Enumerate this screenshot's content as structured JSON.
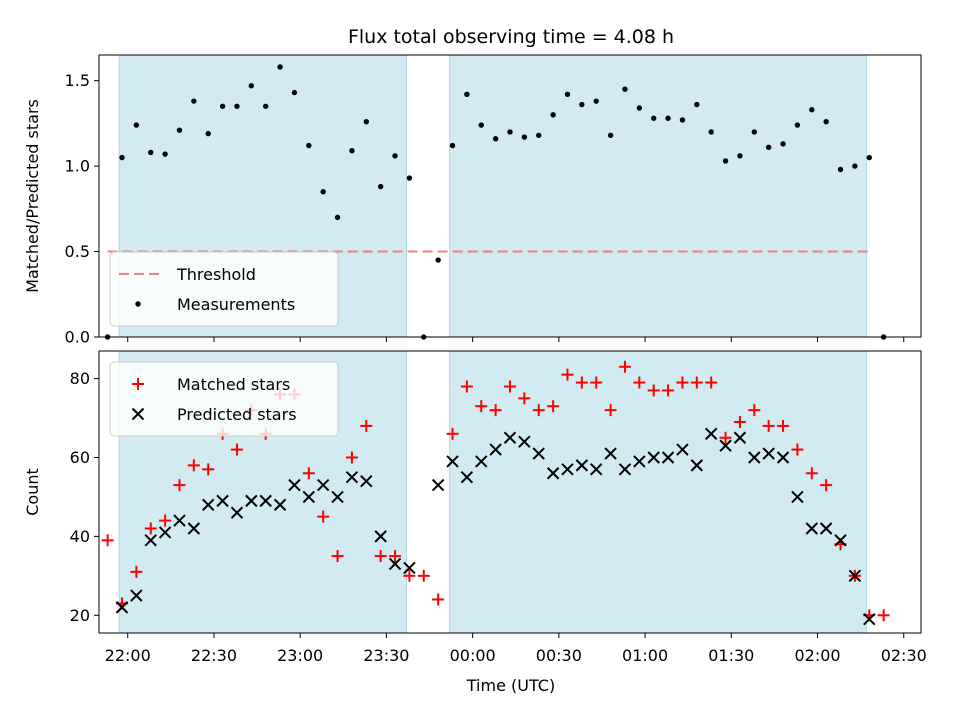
{
  "chart_data": {
    "title": "Flux total observing time = 4.08 h",
    "xlabel": "Time (UTC)",
    "x_start": "21:50",
    "x_end": "02:36",
    "x_ticks": [
      "22:00",
      "22:30",
      "23:00",
      "23:30",
      "00:00",
      "00:30",
      "01:00",
      "01:30",
      "02:00",
      "02:30"
    ],
    "observing_windows": [
      {
        "start": "21:57",
        "end": "23:37"
      },
      {
        "start": "23:52",
        "end": "02:17"
      }
    ],
    "window_color": "#add8e6",
    "panels": [
      {
        "type": "scatter",
        "ylabel": "Matched/Predicted stars",
        "ylim": [
          0,
          1.65
        ],
        "yticks": [
          "0.0",
          "0.5",
          "1.0",
          "1.5"
        ],
        "legend_position": "lower-left",
        "threshold": {
          "name": "Threshold",
          "value": 0.5,
          "x_start": "21:53",
          "x_end": "02:19",
          "color": "#f08080",
          "style": "dashed"
        },
        "series": [
          {
            "name": "Measurements",
            "marker": "dot",
            "color": "#000000",
            "x": [
              "21:53",
              "21:58",
              "22:03",
              "22:08",
              "22:13",
              "22:18",
              "22:23",
              "22:28",
              "22:33",
              "22:38",
              "22:43",
              "22:48",
              "22:53",
              "22:58",
              "23:03",
              "23:08",
              "23:13",
              "23:18",
              "23:23",
              "23:28",
              "23:33",
              "23:38",
              "23:43",
              "23:48",
              "23:53",
              "23:58",
              "00:03",
              "00:08",
              "00:13",
              "00:18",
              "00:23",
              "00:28",
              "00:33",
              "00:38",
              "00:43",
              "00:48",
              "00:53",
              "00:58",
              "01:03",
              "01:08",
              "01:13",
              "01:18",
              "01:23",
              "01:28",
              "01:33",
              "01:38",
              "01:43",
              "01:48",
              "01:53",
              "01:58",
              "02:03",
              "02:08",
              "02:13",
              "02:18",
              "02:23"
            ],
            "y": [
              0.0,
              1.05,
              1.24,
              1.08,
              1.07,
              1.21,
              1.38,
              1.19,
              1.35,
              1.35,
              1.47,
              1.35,
              1.58,
              1.43,
              1.12,
              0.85,
              0.7,
              1.09,
              1.26,
              0.88,
              1.06,
              0.93,
              0.0,
              0.45,
              1.12,
              1.42,
              1.24,
              1.16,
              1.2,
              1.17,
              1.18,
              1.3,
              1.42,
              1.36,
              1.38,
              1.18,
              1.45,
              1.34,
              1.28,
              1.28,
              1.27,
              1.36,
              1.2,
              1.03,
              1.06,
              1.2,
              1.11,
              1.13,
              1.24,
              1.33,
              1.26,
              0.98,
              1.0,
              1.05,
              0.0
            ]
          }
        ]
      },
      {
        "type": "scatter",
        "ylabel": "Count",
        "ylim": [
          15.5,
          87
        ],
        "yticks": [
          "20",
          "40",
          "60",
          "80"
        ],
        "legend_position": "upper-left",
        "series": [
          {
            "name": "Matched stars",
            "marker": "plus",
            "color": "#ff0000",
            "x": [
              "21:53",
              "21:58",
              "22:03",
              "22:08",
              "22:13",
              "22:18",
              "22:23",
              "22:28",
              "22:33",
              "22:38",
              "22:43",
              "22:48",
              "22:53",
              "22:58",
              "23:03",
              "23:08",
              "23:13",
              "23:18",
              "23:23",
              "23:28",
              "23:33",
              "23:38",
              "23:43",
              "23:48",
              "23:53",
              "23:58",
              "00:03",
              "00:08",
              "00:13",
              "00:18",
              "00:23",
              "00:28",
              "00:33",
              "00:38",
              "00:43",
              "00:48",
              "00:53",
              "00:58",
              "01:03",
              "01:08",
              "01:13",
              "01:18",
              "01:23",
              "01:28",
              "01:33",
              "01:38",
              "01:43",
              "01:48",
              "01:53",
              "01:58",
              "02:03",
              "02:08",
              "02:13",
              "02:18",
              "02:23"
            ],
            "y": [
              39,
              23,
              31,
              42,
              44,
              53,
              58,
              57,
              66,
              62,
              72,
              66,
              76,
              76,
              56,
              45,
              35,
              60,
              68,
              35,
              35,
              30,
              30,
              24,
              66,
              78,
              73,
              72,
              78,
              75,
              72,
              73,
              81,
              79,
              79,
              72,
              83,
              79,
              77,
              77,
              79,
              79,
              79,
              65,
              69,
              72,
              68,
              68,
              62,
              56,
              53,
              38,
              30,
              20,
              20
            ]
          },
          {
            "name": "Predicted stars",
            "marker": "x",
            "color": "#000000",
            "x": [
              "21:58",
              "22:03",
              "22:08",
              "22:13",
              "22:18",
              "22:23",
              "22:28",
              "22:33",
              "22:38",
              "22:43",
              "22:48",
              "22:53",
              "22:58",
              "23:03",
              "23:08",
              "23:13",
              "23:18",
              "23:23",
              "23:28",
              "23:33",
              "23:38",
              "23:48",
              "23:53",
              "23:58",
              "00:03",
              "00:08",
              "00:13",
              "00:18",
              "00:23",
              "00:28",
              "00:33",
              "00:38",
              "00:43",
              "00:48",
              "00:53",
              "00:58",
              "01:03",
              "01:08",
              "01:13",
              "01:18",
              "01:23",
              "01:28",
              "01:33",
              "01:38",
              "01:43",
              "01:48",
              "01:53",
              "01:58",
              "02:03",
              "02:08",
              "02:13",
              "02:18"
            ],
            "y": [
              22,
              25,
              39,
              41,
              44,
              42,
              48,
              49,
              46,
              49,
              49,
              48,
              53,
              50,
              53,
              50,
              55,
              54,
              40,
              33,
              32,
              53,
              59,
              55,
              59,
              62,
              65,
              64,
              61,
              56,
              57,
              58,
              57,
              61,
              57,
              59,
              60,
              60,
              62,
              58,
              66,
              63,
              65,
              60,
              61,
              60,
              50,
              42,
              42,
              39,
              30,
              19
            ]
          }
        ]
      }
    ]
  }
}
